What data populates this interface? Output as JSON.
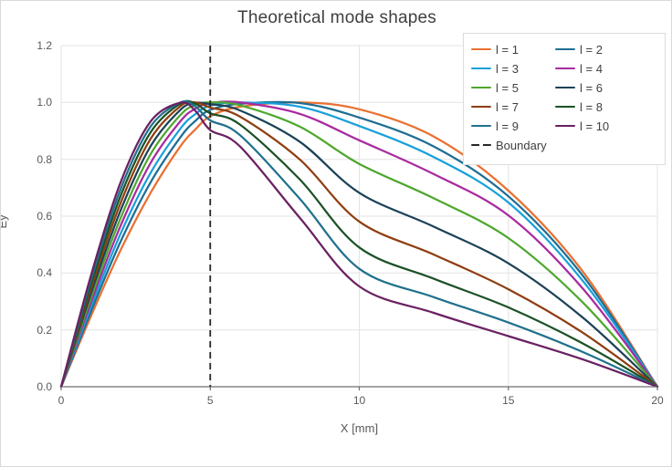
{
  "title": "Theoretical mode shapes",
  "axes": {
    "x": {
      "label": "X [mm]",
      "min": 0,
      "max": 20,
      "ticks": [
        0,
        5,
        10,
        15,
        20
      ]
    },
    "y": {
      "label": "Ey",
      "min": 0,
      "max": 1.2,
      "tick_labels": [
        "0.0",
        "0.2",
        "0.4",
        "0.6",
        "0.8",
        "1.0",
        "1.2"
      ],
      "tick_values": [
        0,
        0.2,
        0.4,
        0.6,
        0.8,
        1.0,
        1.2
      ]
    }
  },
  "grid": {
    "color": "#e3e3e3",
    "vertical_lines_x": [
      5,
      10,
      15
    ],
    "horizontal_step": 0.2
  },
  "axis_line_color": "#6e6e6e",
  "boundary": {
    "label": "Boundary",
    "x": 5,
    "color": "#262626",
    "style": "dashed"
  },
  "legend": {
    "position": "top-right",
    "entries": [
      {
        "label": "l = 1",
        "color": "#E97132",
        "dash": false
      },
      {
        "label": "l = 2",
        "color": "#1F6E93",
        "dash": false
      },
      {
        "label": "l = 3",
        "color": "#19A0DB",
        "dash": false
      },
      {
        "label": "l = 4",
        "color": "#A82BA0",
        "dash": false
      },
      {
        "label": "l = 5",
        "color": "#4EA72E",
        "dash": false
      },
      {
        "label": "l = 6",
        "color": "#1C4257",
        "dash": false
      },
      {
        "label": "l = 7",
        "color": "#8F3E10",
        "dash": false
      },
      {
        "label": "l = 8",
        "color": "#1C5226",
        "dash": false
      },
      {
        "label": "l = 9",
        "color": "#20718C",
        "dash": false
      },
      {
        "label": "l = 10",
        "color": "#6B2162",
        "dash": false
      },
      {
        "label": "Boundary",
        "color": "#262626",
        "dash": true
      }
    ]
  },
  "chart_data": {
    "type": "line",
    "title": "Theoretical mode shapes",
    "xlabel": "X [mm]",
    "ylabel": "Ey",
    "xlim": [
      0,
      20
    ],
    "ylim": [
      0,
      1.2
    ],
    "grid": true,
    "legend_position": "top-right",
    "boundary_vline_x": 5,
    "x": [
      0,
      1,
      2,
      3,
      4,
      4.5,
      5,
      6,
      8,
      10,
      12.5,
      15,
      17.5,
      20
    ],
    "series": [
      {
        "name": "l = 1",
        "color": "#E97132",
        "values": [
          0,
          0.249,
          0.482,
          0.682,
          0.846,
          0.905,
          0.951,
          0.985,
          1.0,
          0.976,
          0.88,
          0.69,
          0.405,
          0
        ]
      },
      {
        "name": "l = 2",
        "color": "#1F6E93",
        "values": [
          0,
          0.265,
          0.512,
          0.719,
          0.878,
          0.935,
          0.974,
          0.995,
          0.998,
          0.947,
          0.845,
          0.67,
          0.39,
          0
        ]
      },
      {
        "name": "l = 3",
        "color": "#19A0DB",
        "values": [
          0,
          0.281,
          0.54,
          0.752,
          0.908,
          0.959,
          0.989,
          1.0,
          0.985,
          0.917,
          0.808,
          0.648,
          0.372,
          0
        ]
      },
      {
        "name": "l = 4",
        "color": "#A82BA0",
        "values": [
          0,
          0.297,
          0.568,
          0.787,
          0.934,
          0.978,
          0.998,
          1.0,
          0.96,
          0.867,
          0.748,
          0.603,
          0.345,
          0
        ]
      },
      {
        "name": "l = 5",
        "color": "#4EA72E",
        "values": [
          0,
          0.313,
          0.595,
          0.818,
          0.956,
          0.991,
          1.0,
          0.99,
          0.915,
          0.784,
          0.663,
          0.523,
          0.296,
          0
        ]
      },
      {
        "name": "l = 6",
        "color": "#1C4257",
        "values": [
          0,
          0.329,
          0.622,
          0.846,
          0.974,
          0.998,
          0.994,
          0.972,
          0.862,
          0.682,
          0.563,
          0.434,
          0.243,
          0
        ]
      },
      {
        "name": "l = 7",
        "color": "#8F3E10",
        "values": [
          0,
          0.345,
          0.648,
          0.872,
          0.987,
          1.0,
          0.982,
          0.95,
          0.8,
          0.581,
          0.465,
          0.343,
          0.19,
          0
        ]
      },
      {
        "name": "l = 8",
        "color": "#1C5226",
        "values": [
          0,
          0.361,
          0.673,
          0.895,
          0.996,
          0.996,
          0.962,
          0.922,
          0.73,
          0.49,
          0.38,
          0.279,
          0.152,
          0
        ]
      },
      {
        "name": "l = 9",
        "color": "#20718C",
        "values": [
          0,
          0.376,
          0.697,
          0.915,
          1.0,
          0.986,
          0.937,
          0.885,
          0.662,
          0.415,
          0.315,
          0.226,
          0.122,
          0
        ]
      },
      {
        "name": "l = 10",
        "color": "#6B2162",
        "values": [
          0,
          0.392,
          0.721,
          0.933,
          0.999,
          0.971,
          0.903,
          0.845,
          0.595,
          0.353,
          0.26,
          0.178,
          0.096,
          0
        ]
      }
    ]
  }
}
